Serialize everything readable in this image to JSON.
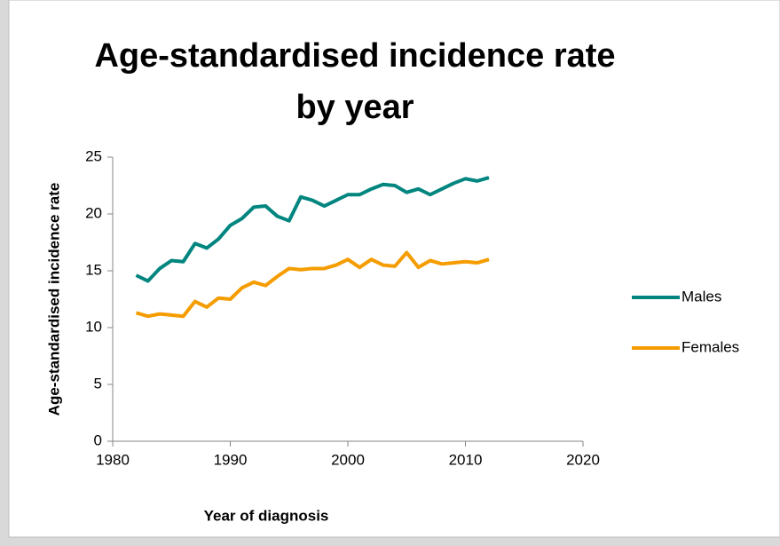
{
  "chart_data": {
    "type": "line",
    "title": "Age-standardised incidence rate by year",
    "x_label": "Year of diagnosis",
    "y_label": "Age-standardised incidence rate",
    "x": [
      1982,
      1983,
      1984,
      1985,
      1986,
      1987,
      1988,
      1989,
      1990,
      1991,
      1992,
      1993,
      1994,
      1995,
      1996,
      1997,
      1998,
      1999,
      2000,
      2001,
      2002,
      2003,
      2004,
      2005,
      2006,
      2007,
      2008,
      2009,
      2010,
      2011,
      2012
    ],
    "series": [
      {
        "name": "Males",
        "color": "#00857f",
        "values": [
          14.6,
          14.1,
          15.2,
          15.9,
          15.8,
          17.4,
          17.0,
          17.8,
          19.0,
          19.6,
          20.6,
          20.7,
          19.8,
          19.4,
          21.5,
          21.2,
          20.7,
          21.2,
          21.7,
          21.7,
          22.2,
          22.6,
          22.5,
          21.9,
          22.2,
          21.7,
          22.2,
          22.7,
          23.1,
          22.9,
          23.2
        ]
      },
      {
        "name": "Females",
        "color": "#f59c00",
        "values": [
          11.3,
          11.0,
          11.2,
          11.1,
          11.0,
          12.3,
          11.8,
          12.6,
          12.5,
          13.5,
          14.0,
          13.7,
          14.5,
          15.2,
          15.1,
          15.2,
          15.2,
          15.5,
          16.0,
          15.3,
          16.0,
          15.5,
          15.4,
          16.6,
          15.3,
          15.9,
          15.6,
          15.7,
          15.8,
          15.7,
          16.0
        ]
      }
    ],
    "xlim": [
      1980,
      2020
    ],
    "xticks": [
      1980,
      1990,
      2000,
      2010,
      2020
    ],
    "ylim": [
      0,
      25
    ],
    "yticks": [
      0,
      5,
      10,
      15,
      20,
      25
    ],
    "grid": false,
    "legend": "right"
  }
}
